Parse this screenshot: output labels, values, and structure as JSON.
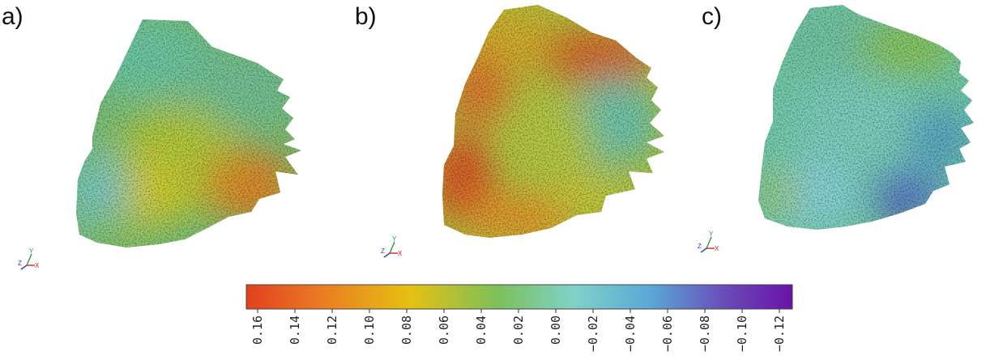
{
  "panels": [
    {
      "label": "a)"
    },
    {
      "label": "b)"
    },
    {
      "label": "c)"
    }
  ],
  "axes_triad": {
    "y": "Y",
    "z": "Z",
    "x": "X",
    "colors": {
      "x": "#d42424",
      "y": "#2e9a2e",
      "z": "#2f3fbf"
    }
  },
  "colorbar": {
    "ticks": [
      "0.16",
      "0.14",
      "0.12",
      "0.10",
      "0.08",
      "0.06",
      "0.04",
      "0.02",
      "0.00",
      "−0.02",
      "−0.04",
      "−0.06",
      "−0.08",
      "−0.10",
      "−0.12"
    ],
    "colors": [
      "#e2401e",
      "#ea7d22",
      "#e6c012",
      "#7cc05a",
      "#7fd2c8",
      "#5aa8d6",
      "#6a49b8",
      "#6a12a8"
    ]
  }
}
